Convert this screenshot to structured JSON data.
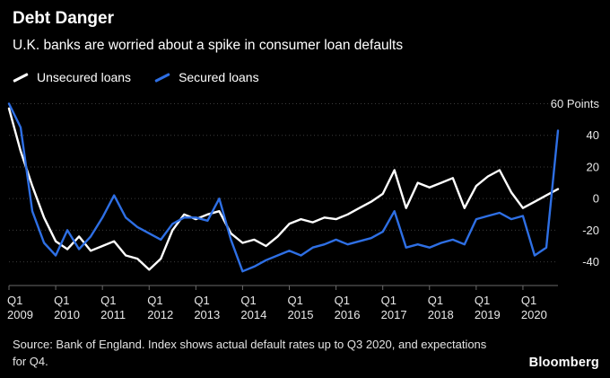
{
  "header": {
    "title": "Debt Danger",
    "subtitle": "U.K. banks are worried about a spike in consumer loan defaults"
  },
  "legend": {
    "items": [
      {
        "label": "Unsecured loans",
        "color": "#ffffff"
      },
      {
        "label": "Secured loans",
        "color": "#2e6fe4"
      }
    ]
  },
  "footer": {
    "source": "Source: Bank of England. Index shows actual default rates up to Q3 2020, and expectations for Q4.",
    "brand": "Bloomberg"
  },
  "colors": {
    "background": "#000000",
    "grid": "#3c3c3c",
    "axis": "#6a6a6a",
    "axis_text": "#e8e8e8"
  },
  "chart_data": {
    "type": "line",
    "title": "Debt Danger",
    "subtitle": "U.K. banks are worried about a spike in consumer loan defaults",
    "unit": "Points",
    "grid": "horizontal-dotted",
    "legend_position": "top-left",
    "ylim": [
      -55,
      62
    ],
    "y_ticks": [
      60,
      40,
      20,
      0,
      -20,
      -40
    ],
    "y_tick_labels": [
      "60 Points",
      "40",
      "20",
      "0",
      "-20",
      "-40"
    ],
    "x": [
      "2009 Q1",
      "2009 Q2",
      "2009 Q3",
      "2009 Q4",
      "2010 Q1",
      "2010 Q2",
      "2010 Q3",
      "2010 Q4",
      "2011 Q1",
      "2011 Q2",
      "2011 Q3",
      "2011 Q4",
      "2012 Q1",
      "2012 Q2",
      "2012 Q3",
      "2012 Q4",
      "2013 Q1",
      "2013 Q2",
      "2013 Q3",
      "2013 Q4",
      "2014 Q1",
      "2014 Q2",
      "2014 Q3",
      "2014 Q4",
      "2015 Q1",
      "2015 Q2",
      "2015 Q3",
      "2015 Q4",
      "2016 Q1",
      "2016 Q2",
      "2016 Q3",
      "2016 Q4",
      "2017 Q1",
      "2017 Q2",
      "2017 Q3",
      "2017 Q4",
      "2018 Q1",
      "2018 Q2",
      "2018 Q3",
      "2018 Q4",
      "2019 Q1",
      "2019 Q2",
      "2019 Q3",
      "2019 Q4",
      "2020 Q1",
      "2020 Q2",
      "2020 Q3",
      "2020 Q4"
    ],
    "x_ticks": [
      {
        "index": 0,
        "line1": "Q1",
        "line2": "2009"
      },
      {
        "index": 4,
        "line1": "Q1",
        "line2": "2010"
      },
      {
        "index": 8,
        "line1": "Q1",
        "line2": "2011"
      },
      {
        "index": 12,
        "line1": "Q1",
        "line2": "2012"
      },
      {
        "index": 16,
        "line1": "Q1",
        "line2": "2013"
      },
      {
        "index": 20,
        "line1": "Q1",
        "line2": "2014"
      },
      {
        "index": 24,
        "line1": "Q1",
        "line2": "2015"
      },
      {
        "index": 28,
        "line1": "Q1",
        "line2": "2016"
      },
      {
        "index": 32,
        "line1": "Q1",
        "line2": "2017"
      },
      {
        "index": 36,
        "line1": "Q1",
        "line2": "2018"
      },
      {
        "index": 40,
        "line1": "Q1",
        "line2": "2019"
      },
      {
        "index": 44,
        "line1": "Q1",
        "line2": "2020"
      }
    ],
    "series": [
      {
        "name": "Unsecured loans",
        "color": "#ffffff",
        "values": [
          57,
          30,
          8,
          -12,
          -27,
          -32,
          -24,
          -33,
          -30,
          -27,
          -36,
          -38,
          -45,
          -38,
          -20,
          -10,
          -13,
          -10,
          -8,
          -22,
          -28,
          -26,
          -30,
          -24,
          -16,
          -13,
          -15,
          -12,
          -13,
          -10,
          -6,
          -2,
          3,
          18,
          -6,
          10,
          7,
          10,
          13,
          -6,
          8,
          14,
          18,
          4,
          -6,
          -2,
          2,
          6
        ]
      },
      {
        "name": "Secured loans",
        "color": "#2e6fe4",
        "values": [
          60,
          45,
          -8,
          -28,
          -36,
          -20,
          -32,
          -24,
          -12,
          2,
          -12,
          -18,
          -22,
          -26,
          -16,
          -12,
          -12,
          -14,
          0,
          -26,
          -46,
          -43,
          -39,
          -36,
          -33,
          -36,
          -31,
          -29,
          -26,
          -29,
          -27,
          -25,
          -21,
          -8,
          -31,
          -29,
          -31,
          -28,
          -26,
          -29,
          -13,
          -11,
          -9,
          -13,
          -11,
          -36,
          -31,
          43
        ]
      }
    ]
  }
}
